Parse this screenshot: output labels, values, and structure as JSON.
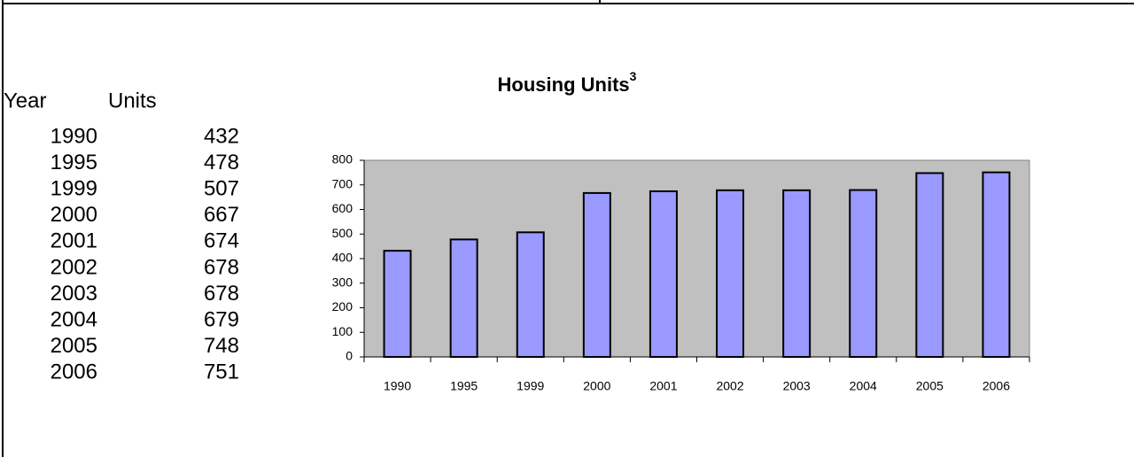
{
  "table": {
    "header": [
      "Year",
      "Units"
    ]
  },
  "chart_data": {
    "type": "bar",
    "title": "Housing Units",
    "title_superscript": "3",
    "categories": [
      "1990",
      "1995",
      "1999",
      "2000",
      "2001",
      "2002",
      "2003",
      "2004",
      "2005",
      "2006"
    ],
    "values": [
      432,
      478,
      507,
      667,
      674,
      678,
      678,
      679,
      748,
      751
    ],
    "color": "#9999ff",
    "plot_background": "#c0c0c0",
    "ylim": [
      0,
      800
    ],
    "yticks": [
      0,
      100,
      200,
      300,
      400,
      500,
      600,
      700,
      800
    ],
    "grid": false
  }
}
